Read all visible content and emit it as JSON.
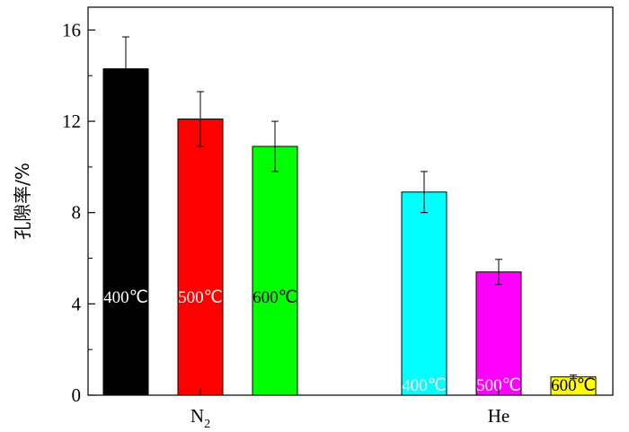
{
  "chart_data": {
    "type": "bar",
    "ylabel": "孔隙率/%",
    "ylim": [
      0,
      17
    ],
    "yticks": [
      "0",
      "4",
      "8",
      "12",
      "16"
    ],
    "groups": [
      {
        "label_main": "N",
        "label_sub": "2",
        "bars": [
          {
            "label": "400℃",
            "value": 14.3,
            "error": 1.4,
            "color": "#000000",
            "label_color": "#ffffff"
          },
          {
            "label": "500℃",
            "value": 12.1,
            "error": 1.2,
            "color": "#ff0000",
            "label_color": "#ffffff"
          },
          {
            "label": "600℃",
            "value": 10.9,
            "error": 1.1,
            "color": "#00ff00",
            "label_color": "#000000"
          }
        ]
      },
      {
        "label_main": "He",
        "label_sub": "",
        "bars": [
          {
            "label": "400℃",
            "value": 8.9,
            "error": 0.9,
            "color": "#00ffff",
            "label_color": "#ffffff"
          },
          {
            "label": "500℃",
            "value": 5.4,
            "error": 0.55,
            "color": "#ff00ff",
            "label_color": "#ffffff"
          },
          {
            "label": "600℃",
            "value": 0.8,
            "error": 0.08,
            "color": "#ffff00",
            "label_color": "#000000"
          }
        ]
      }
    ],
    "grid": false,
    "legend": "none"
  }
}
